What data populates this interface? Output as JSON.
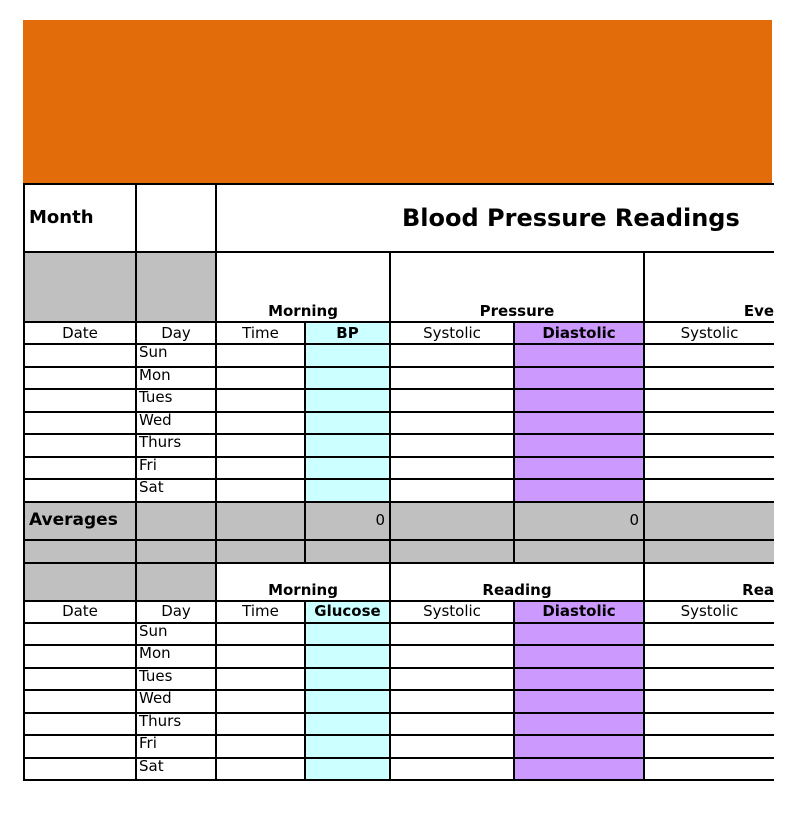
{
  "colors": {
    "banner": "#E26B0A",
    "bp_column": "#CCFFFF",
    "diastolic_column": "#CC99FF",
    "shaded": "#C0C0C0"
  },
  "title_row": {
    "month_label": "Month",
    "title": "Blood Pressure Readings"
  },
  "bp_section": {
    "groups": [
      "Morning",
      "Pressure",
      "Eve"
    ],
    "columns": [
      "Date",
      "Day",
      "Time",
      "BP",
      "Systolic",
      "Diastolic",
      "Systolic"
    ],
    "days": [
      "Sun",
      "Mon",
      "Tues",
      "Wed",
      "Thurs",
      "Fri",
      "Sat"
    ],
    "averages_label": "Averages",
    "averages": {
      "bp": "0",
      "diastolic": "0"
    }
  },
  "glucose_section": {
    "groups": [
      "Morning",
      "Reading",
      "Rea"
    ],
    "columns": [
      "Date",
      "Day",
      "Time",
      "Glucose",
      "Systolic",
      "Diastolic",
      "Systolic"
    ],
    "days": [
      "Sun",
      "Mon",
      "Tues",
      "Wed",
      "Thurs",
      "Fri",
      "Sat"
    ]
  }
}
